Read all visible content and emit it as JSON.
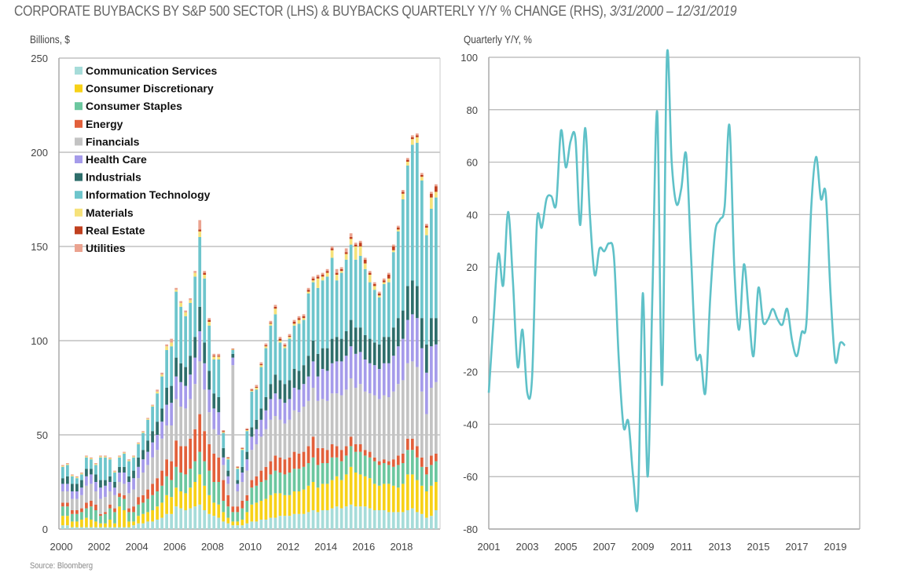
{
  "title": "CORPORATE BUYBACKS BY S&P 500 SECTOR (LHS) & BUYBACKS QUARTERLY Y/Y % CHANGE (RHS),",
  "title_dates": "3/31/2000 – 12/31/2019",
  "source": "Source: Bloomberg",
  "chart_data": [
    {
      "type": "bar",
      "stacked": true,
      "ylabel": "Billions, $",
      "ylim": [
        0,
        250
      ],
      "yticks": [
        0,
        50,
        100,
        150,
        200,
        250
      ],
      "xticks": [
        "2000",
        "2002",
        "2004",
        "2006",
        "2008",
        "2010",
        "2012",
        "2014",
        "2016",
        "2018"
      ],
      "grid": true,
      "legend": "top-left",
      "quarters_start": "2000Q1",
      "quarters_end": "2019Q4",
      "series": [
        {
          "name": "Communication Services",
          "color": "#a6dcd9",
          "values": [
            2,
            2,
            1,
            1,
            1,
            1,
            1,
            1,
            1,
            1,
            1,
            1,
            1,
            1,
            1,
            2,
            3,
            3,
            4,
            4,
            5,
            6,
            8,
            8,
            12,
            11,
            10,
            11,
            12,
            13,
            10,
            8,
            7,
            6,
            4,
            3,
            2,
            2,
            2,
            3,
            4,
            4,
            5,
            5,
            6,
            6,
            7,
            7,
            7,
            8,
            8,
            8,
            9,
            10,
            9,
            10,
            10,
            11,
            12,
            11,
            12,
            13,
            12,
            12,
            12,
            11,
            10,
            10,
            10,
            9,
            9,
            9,
            9,
            10,
            11,
            9,
            8,
            6,
            7,
            10
          ]
        },
        {
          "name": "Consumer Discretionary",
          "color": "#f7d117",
          "values": [
            5,
            5,
            3,
            3,
            4,
            5,
            4,
            3,
            2,
            2,
            4,
            2,
            11,
            9,
            3,
            2,
            4,
            5,
            5,
            6,
            7,
            8,
            10,
            9,
            10,
            9,
            9,
            11,
            13,
            16,
            13,
            10,
            7,
            7,
            5,
            3,
            2,
            2,
            3,
            6,
            9,
            10,
            10,
            11,
            12,
            13,
            12,
            11,
            11,
            12,
            12,
            13,
            14,
            15,
            13,
            14,
            14,
            15,
            16,
            15,
            17,
            20,
            18,
            17,
            16,
            16,
            14,
            13,
            14,
            15,
            14,
            13,
            15,
            19,
            18,
            17,
            15,
            14,
            16,
            15
          ]
        },
        {
          "name": "Consumer Staples",
          "color": "#6cc79f",
          "values": [
            5,
            5,
            4,
            4,
            4,
            5,
            7,
            6,
            4,
            5,
            6,
            6,
            5,
            6,
            5,
            5,
            6,
            6,
            7,
            8,
            8,
            9,
            10,
            9,
            11,
            10,
            10,
            10,
            11,
            12,
            13,
            13,
            11,
            12,
            6,
            6,
            5,
            5,
            6,
            6,
            9,
            9,
            10,
            10,
            11,
            12,
            11,
            11,
            12,
            12,
            12,
            12,
            12,
            13,
            12,
            11,
            11,
            12,
            10,
            10,
            10,
            11,
            11,
            12,
            11,
            11,
            12,
            11,
            11,
            10,
            10,
            12,
            11,
            13,
            13,
            12,
            10,
            9,
            11,
            11
          ]
        },
        {
          "name": "Energy",
          "color": "#e2603b",
          "values": [
            2,
            2,
            2,
            2,
            2,
            3,
            3,
            3,
            1,
            1,
            2,
            2,
            2,
            2,
            2,
            3,
            4,
            4,
            5,
            6,
            7,
            8,
            9,
            10,
            14,
            14,
            15,
            16,
            17,
            20,
            16,
            14,
            15,
            13,
            11,
            6,
            3,
            3,
            4,
            3,
            4,
            5,
            6,
            7,
            7,
            8,
            8,
            8,
            8,
            9,
            8,
            8,
            9,
            11,
            9,
            8,
            7,
            7,
            6,
            6,
            5,
            5,
            4,
            4,
            3,
            3,
            2,
            2,
            2,
            2,
            4,
            5,
            5,
            6,
            6,
            6,
            5,
            4,
            5,
            4
          ]
        },
        {
          "name": "Financials",
          "color": "#c3c3c3",
          "values": [
            6,
            6,
            6,
            6,
            7,
            9,
            9,
            7,
            8,
            8,
            7,
            7,
            6,
            6,
            8,
            9,
            10,
            12,
            13,
            14,
            15,
            17,
            18,
            19,
            22,
            21,
            20,
            21,
            24,
            28,
            22,
            17,
            13,
            12,
            8,
            6,
            75,
            8,
            10,
            13,
            16,
            17,
            18,
            20,
            22,
            21,
            20,
            19,
            20,
            22,
            22,
            24,
            24,
            26,
            25,
            26,
            26,
            27,
            28,
            29,
            30,
            31,
            30,
            32,
            31,
            31,
            33,
            33,
            34,
            34,
            36,
            38,
            39,
            40,
            41,
            42,
            35,
            28,
            36,
            38
          ]
        },
        {
          "name": "Health Care",
          "color": "#a59bea",
          "values": [
            4,
            4,
            4,
            4,
            4,
            5,
            5,
            5,
            6,
            6,
            5,
            4,
            5,
            6,
            6,
            6,
            6,
            7,
            7,
            8,
            8,
            9,
            11,
            12,
            12,
            13,
            12,
            13,
            14,
            16,
            14,
            12,
            11,
            12,
            4,
            4,
            4,
            4,
            5,
            6,
            7,
            8,
            9,
            10,
            11,
            12,
            11,
            11,
            11,
            12,
            12,
            12,
            13,
            14,
            13,
            16,
            16,
            16,
            17,
            18,
            18,
            17,
            18,
            17,
            17,
            16,
            16,
            16,
            17,
            18,
            19,
            20,
            22,
            23,
            25,
            26,
            23,
            22,
            22,
            20
          ]
        },
        {
          "name": "Industrials",
          "color": "#2e6e6b",
          "values": [
            3,
            4,
            4,
            4,
            4,
            4,
            3,
            4,
            4,
            3,
            3,
            3,
            3,
            3,
            3,
            4,
            5,
            5,
            6,
            6,
            7,
            7,
            9,
            9,
            10,
            10,
            10,
            10,
            11,
            13,
            11,
            10,
            8,
            8,
            5,
            3,
            2,
            2,
            3,
            4,
            5,
            5,
            6,
            7,
            8,
            10,
            10,
            10,
            10,
            10,
            10,
            10,
            11,
            11,
            12,
            11,
            12,
            13,
            13,
            12,
            13,
            14,
            14,
            13,
            13,
            13,
            12,
            13,
            14,
            14,
            15,
            15,
            15,
            18,
            18,
            17,
            16,
            15,
            15,
            14
          ]
        },
        {
          "name": "Information Technology",
          "color": "#6dc5cc",
          "values": [
            6,
            6,
            4,
            3,
            3,
            6,
            5,
            5,
            12,
            12,
            9,
            5,
            5,
            7,
            8,
            7,
            7,
            9,
            11,
            13,
            15,
            17,
            20,
            21,
            35,
            30,
            27,
            28,
            32,
            37,
            34,
            24,
            18,
            20,
            8,
            6,
            2,
            6,
            9,
            11,
            19,
            16,
            22,
            26,
            31,
            32,
            20,
            19,
            22,
            23,
            25,
            24,
            33,
            31,
            35,
            36,
            38,
            43,
            30,
            35,
            38,
            40,
            36,
            38,
            35,
            30,
            28,
            25,
            28,
            29,
            40,
            46,
            59,
            64,
            72,
            76,
            73,
            58,
            58,
            64
          ]
        },
        {
          "name": "Materials",
          "color": "#f6e27a",
          "values": [
            0.5,
            0.5,
            0.5,
            0.5,
            0.5,
            0.5,
            0.5,
            0.5,
            0.5,
            0.5,
            0.5,
            0.5,
            0.5,
            0.5,
            0.5,
            0.5,
            0.5,
            0.5,
            0.5,
            0.5,
            1,
            1,
            2,
            2,
            1,
            2,
            2,
            1.5,
            2,
            3,
            2,
            2,
            1.5,
            1.5,
            0.5,
            0.5,
            0.3,
            0.5,
            0.5,
            0.5,
            0.5,
            1,
            1,
            1,
            1,
            3,
            1,
            1,
            1,
            1,
            2,
            1,
            1,
            1,
            5,
            2,
            2,
            4,
            3,
            1,
            3,
            3,
            7,
            5,
            3,
            4,
            2,
            1,
            1,
            2,
            1,
            1,
            3,
            2,
            3,
            3,
            2,
            4,
            6,
            3
          ]
        },
        {
          "name": "Real Estate",
          "color": "#c0401f",
          "values": [
            0,
            0,
            0,
            0,
            0,
            0,
            0,
            0,
            0,
            0,
            0,
            0,
            0,
            0,
            0,
            0,
            0,
            0,
            0,
            0,
            0,
            0,
            0,
            0,
            0,
            0,
            0,
            0,
            0,
            1,
            1,
            1,
            0.5,
            0.5,
            0.5,
            0.3,
            0.3,
            0.3,
            0.3,
            0.5,
            0.5,
            0.5,
            0.5,
            0.5,
            0.5,
            1,
            1,
            0.5,
            0.5,
            1,
            1,
            1,
            1,
            1,
            1,
            1,
            1,
            1,
            1,
            1,
            1,
            1,
            1,
            2,
            2,
            1,
            1,
            1,
            1,
            2,
            2,
            1,
            1,
            1,
            1,
            1,
            1,
            1,
            2,
            3
          ]
        },
        {
          "name": "Utilities",
          "color": "#eba390",
          "values": [
            0.5,
            0.5,
            0.5,
            0.5,
            0.5,
            0.5,
            0.5,
            0.5,
            0.5,
            0.5,
            0.5,
            0.5,
            0.5,
            0.5,
            0.5,
            0.5,
            0.5,
            0.5,
            0.5,
            0.5,
            1,
            1,
            1,
            2,
            1,
            1,
            1,
            1,
            1,
            5,
            1,
            1,
            1,
            1,
            0.5,
            0.5,
            0.2,
            0.5,
            0.5,
            0.5,
            0.5,
            1,
            1,
            1,
            1,
            1,
            1,
            1,
            1,
            1,
            1,
            1,
            1,
            1,
            1,
            1,
            1,
            1,
            2,
            1,
            2,
            2,
            1,
            1,
            1,
            1,
            1,
            1,
            1,
            1,
            1,
            1,
            1,
            1,
            1,
            1,
            1,
            1,
            1,
            1
          ]
        }
      ]
    },
    {
      "type": "line",
      "ylabel": "Quarterly Y/Y, %",
      "ylim": [
        -80,
        100
      ],
      "yticks": [
        -80,
        -60,
        -40,
        -20,
        0,
        20,
        40,
        60,
        80,
        100
      ],
      "xticks": [
        "2001",
        "2003",
        "2005",
        "2007",
        "2009",
        "2011",
        "2013",
        "2015",
        "2017",
        "2019"
      ],
      "grid": true,
      "color": "#5fc1c8",
      "quarters_start": "2001Q1",
      "values": [
        -28,
        0,
        25,
        13,
        41,
        15,
        -18,
        -4,
        -28,
        -22,
        37,
        35,
        46,
        47,
        44,
        72,
        58,
        68,
        69,
        36,
        73,
        40,
        17,
        27,
        26,
        29,
        24,
        -15,
        -41,
        -39,
        -60,
        -69,
        10,
        -60,
        10,
        79,
        -25,
        100,
        60,
        44,
        50,
        63,
        25,
        -13,
        -14,
        -28,
        8,
        33,
        38,
        43,
        74,
        20,
        -4,
        21,
        3,
        -14,
        12,
        -1,
        0,
        4,
        0,
        -2,
        4,
        -8,
        -14,
        -5,
        -1,
        43,
        62,
        46,
        48,
        10,
        -16,
        -9,
        -10
      ]
    }
  ]
}
